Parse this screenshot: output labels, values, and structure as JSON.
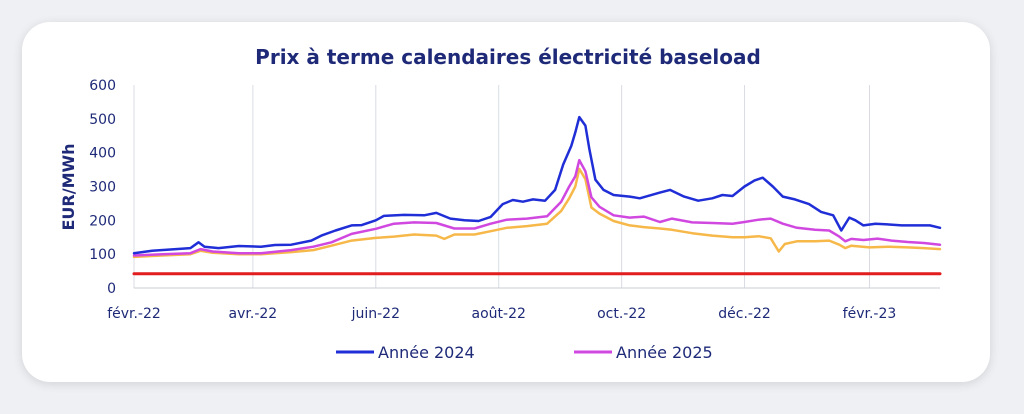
{
  "colors": {
    "text": "#1e2a78",
    "grid": "#d9dce3",
    "axis": "#c8ccd6",
    "card": "#ffffff",
    "background": "#eef0f4"
  },
  "chart_data": {
    "type": "line",
    "title": "Prix à terme calendaires électricité baseload",
    "xlabel": "",
    "ylabel": "EUR/MWh",
    "ylim": [
      0,
      600
    ],
    "yticks": [
      0,
      100,
      200,
      300,
      400,
      500,
      600
    ],
    "xlim": [
      "2022-02-01",
      "2023-03-08"
    ],
    "xticks": [
      {
        "date": "2022-02-01",
        "label": "févr.-22"
      },
      {
        "date": "2022-04-01",
        "label": "avr.-22"
      },
      {
        "date": "2022-06-01",
        "label": "juin-22"
      },
      {
        "date": "2022-08-01",
        "label": "août-22"
      },
      {
        "date": "2022-10-01",
        "label": "oct.-22"
      },
      {
        "date": "2022-12-01",
        "label": "déc.-22"
      },
      {
        "date": "2023-02-01",
        "label": "févr.-23"
      }
    ],
    "grid": "vertical",
    "legend_position": "bottom",
    "series": [
      {
        "name": "Année 2024",
        "color": "#1f2ed6",
        "points": [
          [
            "2022-02-01",
            103
          ],
          [
            "2022-02-10",
            110
          ],
          [
            "2022-02-20",
            114
          ],
          [
            "2022-03-01",
            118
          ],
          [
            "2022-03-05",
            135
          ],
          [
            "2022-03-08",
            122
          ],
          [
            "2022-03-15",
            118
          ],
          [
            "2022-03-25",
            124
          ],
          [
            "2022-04-05",
            122
          ],
          [
            "2022-04-12",
            127
          ],
          [
            "2022-04-20",
            128
          ],
          [
            "2022-04-30",
            140
          ],
          [
            "2022-05-05",
            155
          ],
          [
            "2022-05-12",
            170
          ],
          [
            "2022-05-20",
            185
          ],
          [
            "2022-05-25",
            186
          ],
          [
            "2022-06-01",
            200
          ],
          [
            "2022-06-05",
            213
          ],
          [
            "2022-06-15",
            216
          ],
          [
            "2022-06-25",
            215
          ],
          [
            "2022-07-01",
            222
          ],
          [
            "2022-07-08",
            205
          ],
          [
            "2022-07-15",
            200
          ],
          [
            "2022-07-22",
            198
          ],
          [
            "2022-07-28",
            210
          ],
          [
            "2022-08-03",
            248
          ],
          [
            "2022-08-08",
            260
          ],
          [
            "2022-08-13",
            255
          ],
          [
            "2022-08-18",
            262
          ],
          [
            "2022-08-24",
            258
          ],
          [
            "2022-08-29",
            290
          ],
          [
            "2022-09-02",
            365
          ],
          [
            "2022-09-06",
            420
          ],
          [
            "2022-09-08",
            460
          ],
          [
            "2022-09-10",
            505
          ],
          [
            "2022-09-13",
            480
          ],
          [
            "2022-09-15",
            410
          ],
          [
            "2022-09-18",
            320
          ],
          [
            "2022-09-22",
            290
          ],
          [
            "2022-09-27",
            275
          ],
          [
            "2022-10-05",
            270
          ],
          [
            "2022-10-10",
            265
          ],
          [
            "2022-10-20",
            282
          ],
          [
            "2022-10-25",
            290
          ],
          [
            "2022-11-01",
            270
          ],
          [
            "2022-11-08",
            258
          ],
          [
            "2022-11-15",
            265
          ],
          [
            "2022-11-20",
            275
          ],
          [
            "2022-11-25",
            272
          ],
          [
            "2022-12-01",
            300
          ],
          [
            "2022-12-06",
            318
          ],
          [
            "2022-12-10",
            326
          ],
          [
            "2022-12-15",
            300
          ],
          [
            "2022-12-20",
            270
          ],
          [
            "2022-12-26",
            262
          ],
          [
            "2023-01-02",
            248
          ],
          [
            "2023-01-08",
            225
          ],
          [
            "2023-01-14",
            215
          ],
          [
            "2023-01-18",
            170
          ],
          [
            "2023-01-22",
            208
          ],
          [
            "2023-01-25",
            200
          ],
          [
            "2023-01-29",
            185
          ],
          [
            "2023-02-04",
            190
          ],
          [
            "2023-02-10",
            188
          ],
          [
            "2023-02-17",
            185
          ],
          [
            "2023-02-25",
            185
          ],
          [
            "2023-03-03",
            185
          ],
          [
            "2023-03-08",
            178
          ]
        ]
      },
      {
        "name": "Année 2025",
        "color": "#d048e0",
        "points": [
          [
            "2022-02-01",
            96
          ],
          [
            "2022-02-15",
            100
          ],
          [
            "2022-03-01",
            103
          ],
          [
            "2022-03-06",
            115
          ],
          [
            "2022-03-12",
            108
          ],
          [
            "2022-03-25",
            103
          ],
          [
            "2022-04-05",
            103
          ],
          [
            "2022-04-20",
            112
          ],
          [
            "2022-05-01",
            122
          ],
          [
            "2022-05-10",
            135
          ],
          [
            "2022-05-20",
            160
          ],
          [
            "2022-06-01",
            175
          ],
          [
            "2022-06-10",
            190
          ],
          [
            "2022-06-20",
            194
          ],
          [
            "2022-07-01",
            192
          ],
          [
            "2022-07-10",
            176
          ],
          [
            "2022-07-20",
            176
          ],
          [
            "2022-07-28",
            190
          ],
          [
            "2022-08-05",
            202
          ],
          [
            "2022-08-15",
            205
          ],
          [
            "2022-08-25",
            212
          ],
          [
            "2022-09-01",
            255
          ],
          [
            "2022-09-05",
            300
          ],
          [
            "2022-09-08",
            330
          ],
          [
            "2022-09-10",
            378
          ],
          [
            "2022-09-13",
            345
          ],
          [
            "2022-09-16",
            268
          ],
          [
            "2022-09-20",
            240
          ],
          [
            "2022-09-27",
            215
          ],
          [
            "2022-10-05",
            208
          ],
          [
            "2022-10-12",
            211
          ],
          [
            "2022-10-20",
            195
          ],
          [
            "2022-10-26",
            205
          ],
          [
            "2022-11-05",
            194
          ],
          [
            "2022-11-15",
            192
          ],
          [
            "2022-11-25",
            190
          ],
          [
            "2022-12-01",
            195
          ],
          [
            "2022-12-08",
            202
          ],
          [
            "2022-12-14",
            205
          ],
          [
            "2022-12-20",
            190
          ],
          [
            "2022-12-27",
            178
          ],
          [
            "2023-01-05",
            172
          ],
          [
            "2023-01-12",
            170
          ],
          [
            "2023-01-17",
            152
          ],
          [
            "2023-01-20",
            138
          ],
          [
            "2023-01-23",
            145
          ],
          [
            "2023-01-29",
            142
          ],
          [
            "2023-02-05",
            146
          ],
          [
            "2023-02-12",
            140
          ],
          [
            "2023-02-20",
            136
          ],
          [
            "2023-02-28",
            133
          ],
          [
            "2023-03-08",
            128
          ]
        ]
      },
      {
        "name": "",
        "color": "#f7b84a",
        "points": [
          [
            "2022-02-01",
            92
          ],
          [
            "2022-02-15",
            96
          ],
          [
            "2022-03-01",
            100
          ],
          [
            "2022-03-06",
            110
          ],
          [
            "2022-03-12",
            104
          ],
          [
            "2022-03-25",
            100
          ],
          [
            "2022-04-05",
            100
          ],
          [
            "2022-04-20",
            106
          ],
          [
            "2022-05-01",
            112
          ],
          [
            "2022-05-10",
            125
          ],
          [
            "2022-05-20",
            140
          ],
          [
            "2022-06-01",
            148
          ],
          [
            "2022-06-10",
            152
          ],
          [
            "2022-06-20",
            158
          ],
          [
            "2022-07-01",
            155
          ],
          [
            "2022-07-05",
            145
          ],
          [
            "2022-07-10",
            158
          ],
          [
            "2022-07-20",
            158
          ],
          [
            "2022-07-28",
            168
          ],
          [
            "2022-08-05",
            178
          ],
          [
            "2022-08-15",
            183
          ],
          [
            "2022-08-25",
            190
          ],
          [
            "2022-09-01",
            228
          ],
          [
            "2022-09-05",
            265
          ],
          [
            "2022-09-08",
            300
          ],
          [
            "2022-09-10",
            352
          ],
          [
            "2022-09-13",
            322
          ],
          [
            "2022-09-16",
            238
          ],
          [
            "2022-09-20",
            220
          ],
          [
            "2022-09-27",
            198
          ],
          [
            "2022-10-05",
            185
          ],
          [
            "2022-10-12",
            180
          ],
          [
            "2022-10-20",
            176
          ],
          [
            "2022-10-26",
            172
          ],
          [
            "2022-11-05",
            162
          ],
          [
            "2022-11-15",
            155
          ],
          [
            "2022-11-25",
            150
          ],
          [
            "2022-12-01",
            150
          ],
          [
            "2022-12-08",
            153
          ],
          [
            "2022-12-14",
            147
          ],
          [
            "2022-12-18",
            108
          ],
          [
            "2022-12-21",
            130
          ],
          [
            "2022-12-27",
            138
          ],
          [
            "2023-01-05",
            138
          ],
          [
            "2023-01-12",
            140
          ],
          [
            "2023-01-17",
            128
          ],
          [
            "2023-01-20",
            118
          ],
          [
            "2023-01-23",
            125
          ],
          [
            "2023-02-01",
            120
          ],
          [
            "2023-02-10",
            122
          ],
          [
            "2023-02-20",
            120
          ],
          [
            "2023-02-28",
            118
          ],
          [
            "2023-03-08",
            115
          ]
        ]
      },
      {
        "name": "",
        "color": "#e21d1d",
        "points": [
          [
            "2022-02-01",
            42
          ],
          [
            "2023-03-08",
            42
          ]
        ]
      }
    ]
  }
}
